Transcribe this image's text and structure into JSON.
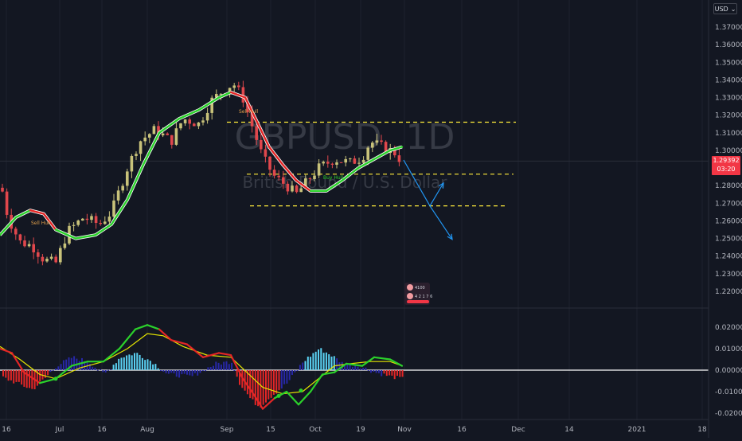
{
  "symbol": {
    "ticker": "GBPUSD",
    "interval": "1D",
    "description": "British Pound / U.S. Dollar",
    "currency": "USD"
  },
  "price_tag": {
    "price": "1.29392",
    "countdown": "03:20",
    "color": "#f23645"
  },
  "colors": {
    "background": "#131722",
    "candle_up": "#c8c27a",
    "candle_down": "#e0474c",
    "hull_up": "#2bd12b",
    "hull_down": "#e32626",
    "hull_outline": "#ffffff",
    "level_line": "#ffeb3b",
    "arrow": "#2196f3",
    "hist_pos": "#5ad2f4",
    "hist_neg_dark": "#2727a6",
    "hist_neg": "#e32626",
    "signal_line": "#e5e500"
  },
  "price_axis": {
    "ticks": [
      "1.37000",
      "1.36000",
      "1.35000",
      "1.34000",
      "1.33000",
      "1.32000",
      "1.31000",
      "1.30000",
      "1.28000",
      "1.27000",
      "1.26000",
      "1.25000",
      "1.24000",
      "1.23000",
      "1.22000"
    ]
  },
  "osc_axis": {
    "ticks": [
      "0.02000",
      "0.01000",
      "0.00000",
      "-0.01000",
      "-0.02000"
    ]
  },
  "time_axis": {
    "labels": [
      "16",
      "Jul",
      "16",
      "Aug",
      "Sep",
      "15",
      "Oct",
      "19",
      "Nov",
      "16",
      "Dec",
      "14",
      "2021",
      "18"
    ]
  },
  "hull_labels": [
    "Sell Hull",
    "Sell Hull",
    "Buy Hull"
  ],
  "badge": {
    "text1": "4100",
    "text2": "4 2 1 7 6"
  },
  "chart_data": {
    "type": "candlestick",
    "title": "GBPUSD, 1D",
    "ylim": [
      1.215,
      1.377
    ],
    "levels": [
      1.316,
      1.2865,
      1.2685
    ],
    "projection": [
      {
        "from": [
          1.2945,
          1.2945
        ],
        "to": [
          1.2685,
          1.2685
        ]
      },
      {
        "to": [
          1.2495,
          1.2495
        ]
      }
    ],
    "osc_ylim": [
      -0.022,
      0.025
    ],
    "last_price": 1.29392
  }
}
